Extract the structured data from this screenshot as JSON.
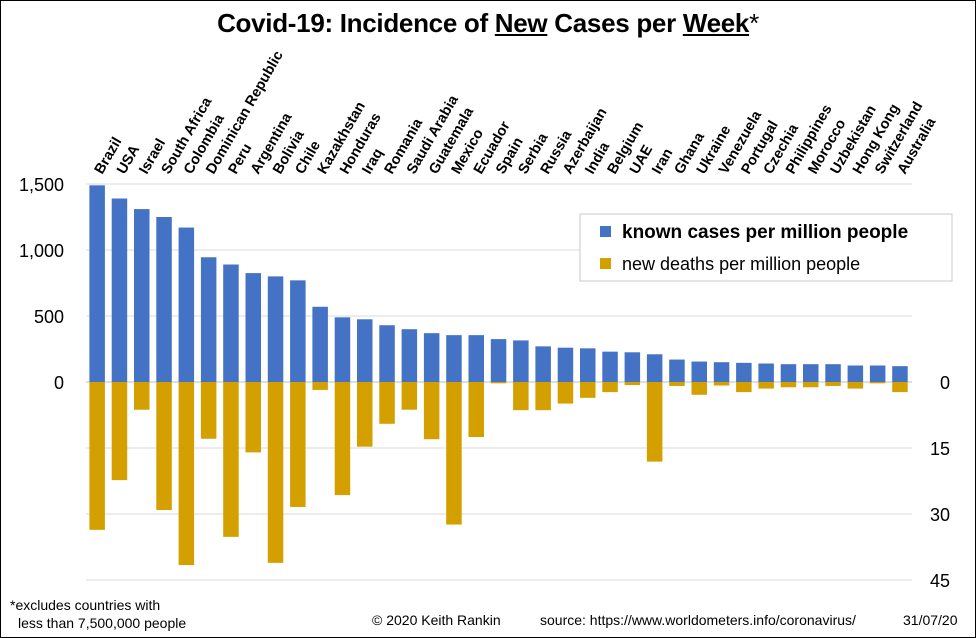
{
  "title": {
    "prefix": "Covid-19: Incidence of ",
    "word1": "New",
    "middle": " Cases per ",
    "word2": "Week",
    "suffix": "*"
  },
  "footer": {
    "note_line1": "*excludes countries with",
    "note_line2": "less than 7,500,000  people",
    "copyright": "© 2020  Keith Rankin",
    "source": "source:  https://www.worldometers.info/coronavirus/",
    "date": "31/07/20"
  },
  "chart_data": {
    "type": "bar",
    "categories": [
      "Brazil",
      "USA",
      "Israel",
      "South Africa",
      "Colombia",
      "Dominican Republic",
      "Peru",
      "Argentina",
      "Bolivia",
      "Chile",
      "Kazakhstan",
      "Honduras",
      "Iraq",
      "Romania",
      "Saudi Arabia",
      "Guatemala",
      "Mexico",
      "Ecuador",
      "Spain",
      "Serbia",
      "Russia",
      "Azerbaijan",
      "India",
      "Belgium",
      "UAE",
      "Iran",
      "Ghana",
      "Ukraine",
      "Venezuela",
      "Portugal",
      "Czechia",
      "Philippines",
      "Morocco",
      "Uzbekistan",
      "Hong Kong",
      "Switzerland",
      "Australia"
    ],
    "series": [
      {
        "name": "known cases per million people",
        "color": "#4472C4",
        "axis": "left",
        "values": [
          1490,
          1390,
          1310,
          1250,
          1170,
          945,
          890,
          825,
          800,
          770,
          570,
          490,
          475,
          430,
          400,
          370,
          355,
          355,
          325,
          315,
          270,
          260,
          255,
          230,
          225,
          210,
          170,
          155,
          150,
          145,
          140,
          135,
          135,
          135,
          125,
          125,
          120
        ]
      },
      {
        "name": "new deaths per million people",
        "color": "#D4A000",
        "axis": "right",
        "values": [
          33.6,
          22.3,
          6.3,
          29.1,
          41.6,
          12.9,
          35.2,
          16.0,
          41.1,
          28.4,
          1.8,
          25.7,
          14.7,
          9.5,
          6.3,
          13.0,
          32.4,
          12.5,
          0.3,
          6.4,
          6.4,
          4.9,
          3.6,
          2.3,
          0.7,
          18.1,
          0.9,
          2.9,
          0.8,
          2.3,
          1.5,
          1.2,
          1.2,
          0.9,
          1.5,
          0.3,
          2.3
        ]
      }
    ],
    "y_left": {
      "ticks": [
        0,
        500,
        1000,
        1500
      ],
      "tick_labels": [
        "0",
        "500",
        "1,000",
        "1,500"
      ]
    },
    "y_right": {
      "ticks": [
        0,
        15,
        30,
        45
      ],
      "tick_labels": [
        "0",
        "15",
        "30",
        "45"
      ],
      "inverted": true
    },
    "grid": true,
    "legend_position": "top-right"
  }
}
